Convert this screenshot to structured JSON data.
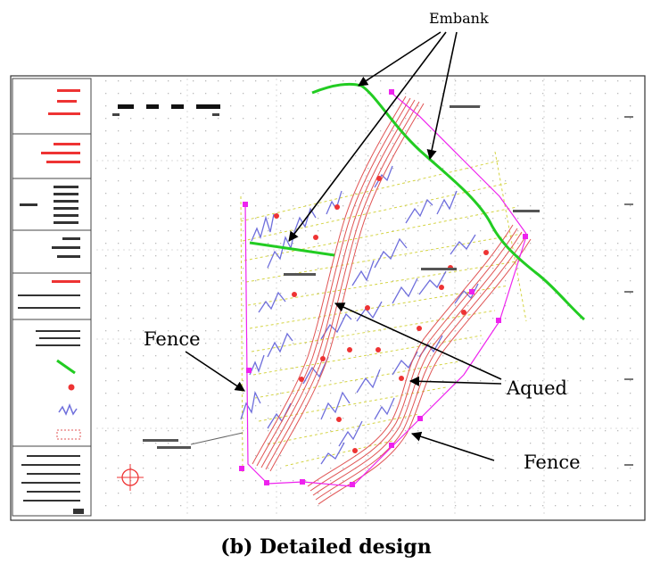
{
  "labels": {
    "embank": "Embank",
    "fence_left": "Fence",
    "aqued": "Aqued",
    "fence_right": "Fence"
  },
  "caption": "(b) Detailed design",
  "colors": {
    "embankment": "#22cc22",
    "aqueduct": "#e05555",
    "fence": "#ee22ee",
    "contour": "#6f6fdc",
    "terrace": "#d4d444",
    "grid": "#bdbdbd",
    "arrow": "#000000"
  }
}
